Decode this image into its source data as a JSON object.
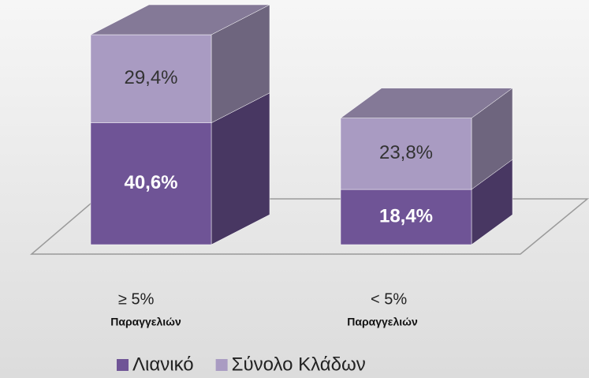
{
  "chart_data": {
    "type": "bar3d_stacked",
    "categories": [
      "≥ 5%",
      "< 5%"
    ],
    "category_sublabels": [
      "Παραγγελιών",
      "Παραγγελιών"
    ],
    "series": [
      {
        "name": "Λιανικό",
        "color": "#6f5496",
        "values": [
          40.6,
          18.4
        ],
        "value_labels": [
          "40,6%",
          "18,4%"
        ]
      },
      {
        "name": "Σύνολο Κλάδων",
        "color": "#a99bc2",
        "values": [
          29.4,
          23.8
        ],
        "value_labels": [
          "29,4%",
          "23,8%"
        ]
      }
    ],
    "legend": "bottom"
  }
}
